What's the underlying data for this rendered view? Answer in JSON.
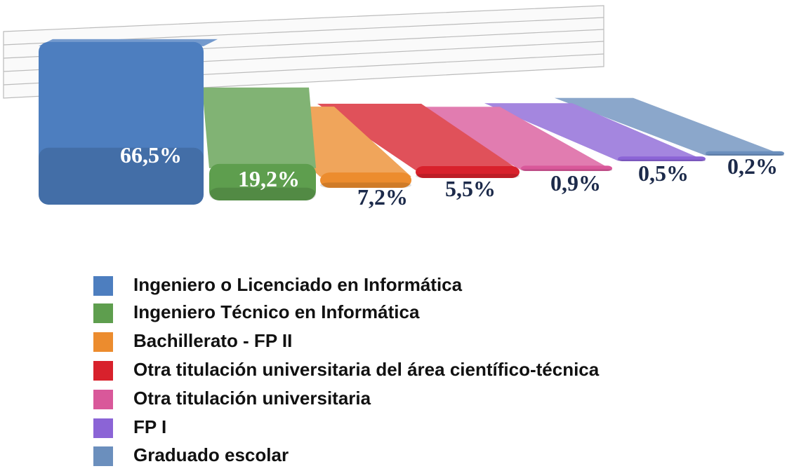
{
  "chart_data": {
    "type": "bar",
    "categories": [
      "Ingeniero o Licenciado en Informática",
      "Ingeniero Técnico en Informática",
      "Bachillerato - FP II",
      "Otra titulación universitaria del área científico-técnica",
      "Otra titulación universitaria",
      "FP I",
      "Graduado escolar"
    ],
    "values": [
      66.5,
      19.2,
      7.2,
      5.5,
      0.9,
      0.5,
      0.2
    ],
    "value_labels": [
      "66,5%",
      "19,2%",
      "7,2%",
      "5,5%",
      "0,9%",
      "0,5%",
      "0,2%"
    ],
    "colors": [
      "#4d7ebf",
      "#5e9e4e",
      "#ec8c2e",
      "#d8212c",
      "#d9589a",
      "#8b64d6",
      "#6b8fbd"
    ]
  }
}
